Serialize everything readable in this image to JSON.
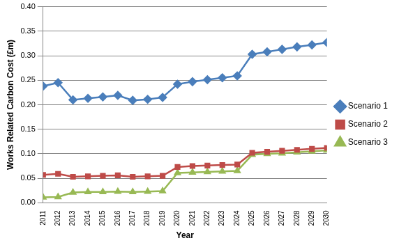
{
  "chart_data": {
    "type": "line",
    "x_label": "Year",
    "y_label": "Works Related Carbon Cost (£m)",
    "categories": [
      "2011",
      "2012",
      "2013",
      "2014",
      "2015",
      "2016",
      "2017",
      "2018",
      "2019",
      "2020",
      "2021",
      "2022",
      "2023",
      "2024",
      "2025",
      "2026",
      "2027",
      "2028",
      "2029",
      "2030"
    ],
    "series": [
      {
        "name": "Scenario 1",
        "color": "#4a7ebb",
        "marker": "diamond",
        "line_style": "solid",
        "values": [
          0.238,
          0.245,
          0.21,
          0.213,
          0.216,
          0.219,
          0.209,
          0.211,
          0.215,
          0.242,
          0.247,
          0.251,
          0.255,
          0.259,
          0.303,
          0.308,
          0.313,
          0.318,
          0.322,
          0.327
        ]
      },
      {
        "name": "Scenario 2",
        "color": "#be4b48",
        "marker": "square",
        "line_style": "solid",
        "values": [
          0.057,
          0.059,
          0.053,
          0.054,
          0.055,
          0.056,
          0.053,
          0.054,
          0.055,
          0.073,
          0.075,
          0.076,
          0.077,
          0.078,
          0.102,
          0.104,
          0.106,
          0.108,
          0.11,
          0.112
        ]
      },
      {
        "name": "Scenario 3",
        "color": "#98b954",
        "marker": "triangle",
        "line_style": "solid",
        "values": [
          0.011,
          0.012,
          0.021,
          0.022,
          0.022,
          0.023,
          0.022,
          0.023,
          0.024,
          0.061,
          0.062,
          0.063,
          0.064,
          0.065,
          0.098,
          0.1,
          0.101,
          0.103,
          0.105,
          0.107
        ]
      }
    ],
    "ylim": [
      0,
      0.4
    ],
    "yticks": [
      {
        "value": 0,
        "label": "0.00"
      },
      {
        "value": 0.05,
        "label": "0.05"
      },
      {
        "value": 0.1,
        "label": "0.10"
      },
      {
        "value": 0.15,
        "label": "0.15"
      },
      {
        "value": 0.2,
        "label": "0.20"
      },
      {
        "value": 0.25,
        "label": "0.25"
      },
      {
        "value": 0.3,
        "label": "0.30"
      },
      {
        "value": 0.35,
        "label": "0.35"
      },
      {
        "value": 0.4,
        "label": "0.40"
      }
    ],
    "grid": true,
    "legend": "right"
  }
}
